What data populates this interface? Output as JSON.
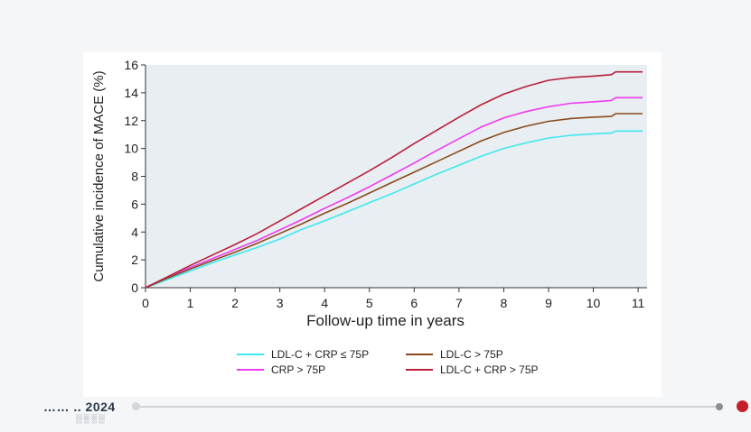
{
  "chart_data": {
    "type": "line",
    "title": "",
    "xlabel": "Follow-up time in years",
    "ylabel": "Cumulative incidence of MACE (%)",
    "xlim": [
      0,
      11.2
    ],
    "ylim": [
      0,
      16
    ],
    "xticks": [
      0,
      1,
      2,
      3,
      4,
      5,
      6,
      7,
      8,
      9,
      10,
      11
    ],
    "yticks": [
      0,
      2,
      4,
      6,
      8,
      10,
      12,
      14,
      16
    ],
    "grid": false,
    "plot_background": "#e8eef1",
    "legend_position": "bottom",
    "series": [
      {
        "name": "LDL-C + CRP ≤ 75P",
        "color": "#3ee8ee",
        "x": [
          0,
          0.5,
          1,
          1.5,
          2,
          2.5,
          3,
          3.5,
          4,
          4.5,
          5,
          5.5,
          6,
          6.5,
          7,
          7.5,
          8,
          8.5,
          9,
          9.5,
          10,
          10.4,
          10.5,
          10.8,
          11.1
        ],
        "y": [
          0,
          0.6,
          1.2,
          1.8,
          2.35,
          2.9,
          3.5,
          4.2,
          4.8,
          5.45,
          6.1,
          6.75,
          7.45,
          8.15,
          8.8,
          9.45,
          10.0,
          10.4,
          10.75,
          10.95,
          11.05,
          11.1,
          11.25,
          11.25,
          11.25
        ]
      },
      {
        "name": "CRP > 75P",
        "color": "#ee3cee",
        "x": [
          0,
          0.5,
          1,
          1.5,
          2,
          2.5,
          3,
          3.5,
          4,
          4.5,
          5,
          5.5,
          6,
          6.5,
          7,
          7.5,
          8,
          8.5,
          9,
          9.5,
          10,
          10.4,
          10.5,
          10.8,
          11.1
        ],
        "y": [
          0,
          0.75,
          1.45,
          2.1,
          2.75,
          3.4,
          4.15,
          4.9,
          5.7,
          6.45,
          7.25,
          8.1,
          8.95,
          9.85,
          10.7,
          11.55,
          12.2,
          12.65,
          13.0,
          13.25,
          13.35,
          13.45,
          13.65,
          13.65,
          13.65
        ]
      },
      {
        "name": "LDL-C > 75P",
        "color": "#8a4b1c",
        "x": [
          0,
          0.5,
          1,
          1.5,
          2,
          2.5,
          3,
          3.5,
          4,
          4.5,
          5,
          5.5,
          6,
          6.5,
          7,
          7.5,
          8,
          8.5,
          9,
          9.5,
          10,
          10.4,
          10.5,
          10.8,
          11.1
        ],
        "y": [
          0,
          0.7,
          1.35,
          1.95,
          2.55,
          3.2,
          3.9,
          4.6,
          5.35,
          6.05,
          6.8,
          7.55,
          8.3,
          9.05,
          9.8,
          10.55,
          11.15,
          11.6,
          11.95,
          12.15,
          12.25,
          12.3,
          12.5,
          12.5,
          12.5
        ]
      },
      {
        "name": "LDL-C + CRP > 75P",
        "color": "#b8203c",
        "x": [
          0,
          0.5,
          1,
          1.5,
          2,
          2.5,
          3,
          3.5,
          4,
          4.5,
          5,
          5.5,
          6,
          6.5,
          7,
          7.5,
          8,
          8.5,
          9,
          9.5,
          10,
          10.4,
          10.5,
          10.8,
          11.1
        ],
        "y": [
          0,
          0.8,
          1.6,
          2.35,
          3.1,
          3.9,
          4.8,
          5.7,
          6.6,
          7.5,
          8.4,
          9.35,
          10.35,
          11.3,
          12.25,
          13.15,
          13.9,
          14.45,
          14.9,
          15.1,
          15.2,
          15.3,
          15.5,
          15.5,
          15.5
        ]
      }
    ]
  },
  "footer": {
    "logo_text": "…… .. 2024",
    "logo_sub": "░░░░"
  }
}
